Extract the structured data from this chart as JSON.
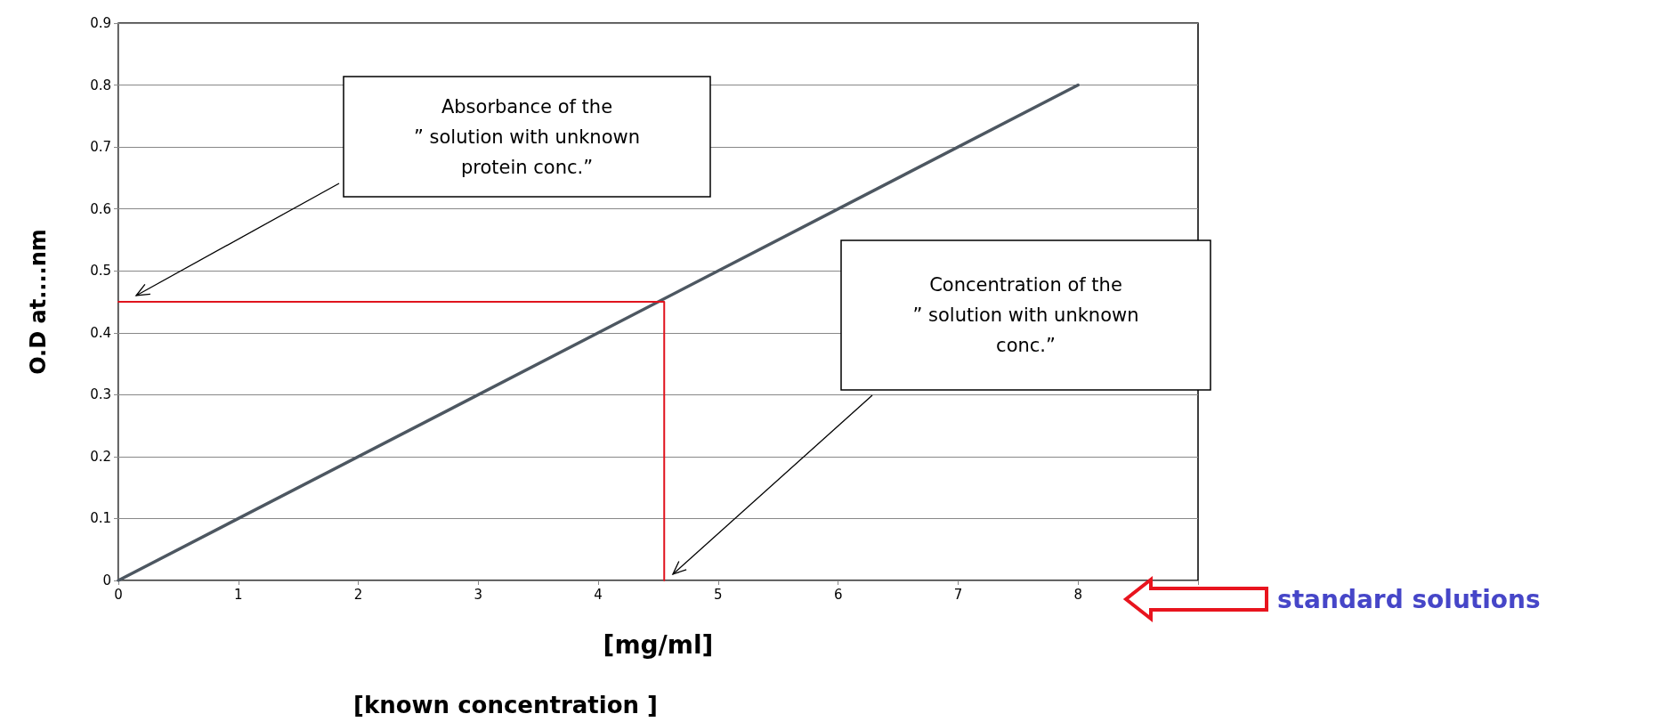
{
  "chart_data": {
    "type": "line",
    "xlabel": "[mg/ml]",
    "ylabel": "O.D at....nm",
    "xlim": [
      0,
      9
    ],
    "xticks": [
      0,
      1,
      2,
      3,
      4,
      5,
      6,
      7,
      8,
      {
        "value": 9,
        "label": null
      }
    ],
    "ylim": [
      0,
      0.9
    ],
    "yticks": [
      0,
      0.1,
      0.2,
      0.3,
      0.4,
      0.5,
      0.6,
      0.7,
      0.8,
      0.9
    ],
    "grid": "y",
    "marker": "none",
    "line_style": "solid",
    "series": [
      {
        "color": "#4d5761",
        "x": [
          0,
          8
        ],
        "values": [
          0,
          0.8
        ]
      },
      {
        "color": "#e0141e",
        "x": [
          0,
          4.55,
          4.55
        ],
        "values": [
          0.45,
          0.45,
          0
        ]
      }
    ],
    "annotations": [
      "Absorbance of the\n” solution with unknown\nprotein conc.”",
      "Concentration of the\n”  solution with unknown\nconc.”",
      "standard solutions",
      "[known concentration ]"
    ]
  }
}
